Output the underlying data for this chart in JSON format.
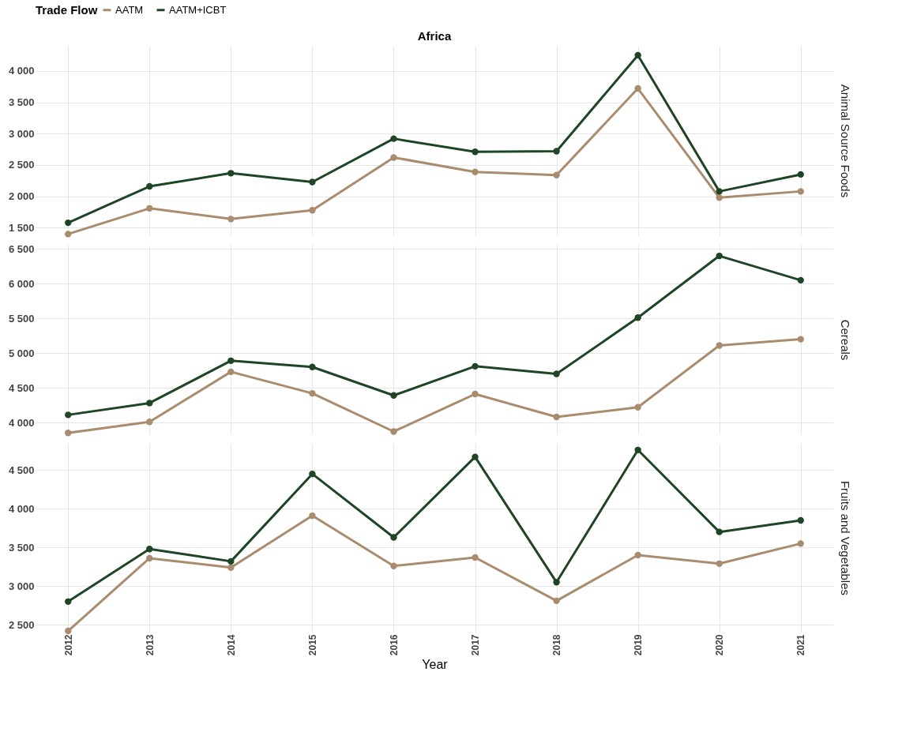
{
  "chart_data": [
    {
      "type": "line",
      "title": "Africa",
      "ylabel": "Animal Source Foods",
      "legend_title": "Trade Flow",
      "legend": "top",
      "grid": true,
      "marker": "circle",
      "line_style": "solid",
      "tick_labels": "y",
      "x": [
        2012,
        2013,
        2014,
        2015,
        2016,
        2017,
        2018,
        2019,
        2020,
        2021
      ],
      "xlim": [
        2011.6,
        2021.4
      ],
      "xticks": [
        2012,
        2013,
        2014,
        2015,
        2016,
        2017,
        2018,
        2019,
        2020,
        2021
      ],
      "ylim": [
        1380,
        4400
      ],
      "yticks": [
        {
          "value": 1500,
          "label": "1 500"
        },
        {
          "value": 2000,
          "label": "2 000"
        },
        {
          "value": 2500,
          "label": "2 500"
        },
        {
          "value": 3000,
          "label": "3 000"
        },
        {
          "value": 3500,
          "label": "3 500"
        },
        {
          "value": 4000,
          "label": "4 000"
        }
      ],
      "series": [
        {
          "name": "AATM",
          "color": "#a98c6e",
          "values": [
            1400,
            1810,
            1640,
            1780,
            2620,
            2390,
            2340,
            3720,
            1980,
            2080
          ]
        },
        {
          "name": "AATM+ICBT",
          "color": "#1f4527",
          "values": [
            1580,
            2160,
            2370,
            2230,
            2920,
            2710,
            2720,
            4250,
            2080,
            2350
          ]
        }
      ]
    },
    {
      "type": "line",
      "ylabel": "Cereals",
      "grid": true,
      "marker": "circle",
      "line_style": "solid",
      "tick_labels": "y",
      "x": [
        2012,
        2013,
        2014,
        2015,
        2016,
        2017,
        2018,
        2019,
        2020,
        2021
      ],
      "xlim": [
        2011.6,
        2021.4
      ],
      "xticks": [
        2012,
        2013,
        2014,
        2015,
        2016,
        2017,
        2018,
        2019,
        2020,
        2021
      ],
      "ylim": [
        3830,
        6560
      ],
      "yticks": [
        {
          "value": 4000,
          "label": "4 000"
        },
        {
          "value": 4500,
          "label": "4 500"
        },
        {
          "value": 5000,
          "label": "5 000"
        },
        {
          "value": 5500,
          "label": "5 500"
        },
        {
          "value": 6000,
          "label": "6 000"
        },
        {
          "value": 6500,
          "label": "6 500"
        }
      ],
      "series": [
        {
          "name": "AATM",
          "color": "#a98c6e",
          "values": [
            3850,
            4010,
            4730,
            4420,
            3870,
            4410,
            4080,
            4220,
            5110,
            5200
          ]
        },
        {
          "name": "AATM+ICBT",
          "color": "#1f4527",
          "values": [
            4110,
            4280,
            4890,
            4800,
            4390,
            4810,
            4700,
            5510,
            6400,
            6050
          ]
        }
      ]
    },
    {
      "type": "line",
      "ylabel": "Fruits and Vegetables",
      "xlabel": "Year",
      "grid": true,
      "marker": "circle",
      "line_style": "solid",
      "x": [
        2012,
        2013,
        2014,
        2015,
        2016,
        2017,
        2018,
        2019,
        2020,
        2021
      ],
      "xlim": [
        2011.6,
        2021.4
      ],
      "xticks": [
        2012,
        2013,
        2014,
        2015,
        2016,
        2017,
        2018,
        2019,
        2020,
        2021
      ],
      "ylim": [
        2400,
        4850
      ],
      "yticks": [
        {
          "value": 2500,
          "label": "2 500"
        },
        {
          "value": 3000,
          "label": "3 000"
        },
        {
          "value": 3500,
          "label": "3 500"
        },
        {
          "value": 4000,
          "label": "4 000"
        },
        {
          "value": 4500,
          "label": "4 500"
        }
      ],
      "series": [
        {
          "name": "AATM",
          "color": "#a98c6e",
          "values": [
            2420,
            3360,
            3240,
            3910,
            3260,
            3370,
            2810,
            3400,
            3290,
            3550
          ]
        },
        {
          "name": "AATM+ICBT",
          "color": "#1f4527",
          "values": [
            2800,
            3480,
            3320,
            4450,
            3630,
            4670,
            3050,
            4760,
            3700,
            3850
          ]
        }
      ]
    }
  ]
}
